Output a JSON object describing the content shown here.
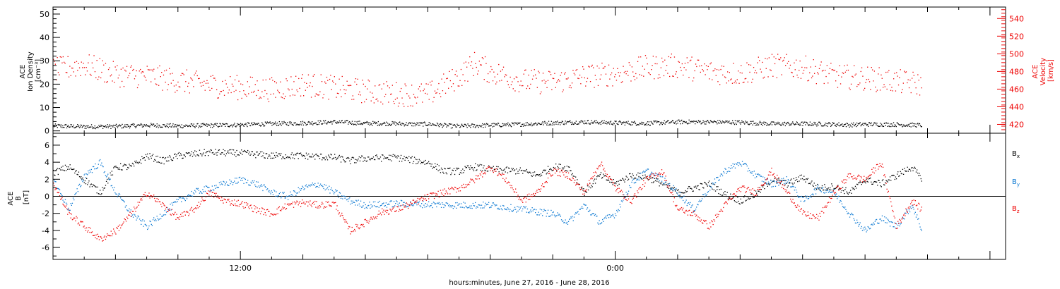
{
  "chart_data": [
    {
      "type": "scatter",
      "panel": "plasma",
      "ylabel_lines": [
        "ACE",
        "Ion Density",
        "[cm⁻³]"
      ],
      "ylabel_right_lines": [
        "ACE",
        "Velocity",
        "[km/s]"
      ],
      "ylim": [
        -1,
        53
      ],
      "yticks": [
        0,
        10,
        20,
        30,
        40,
        50
      ],
      "ylim_right": [
        410,
        553
      ],
      "yticks_right": [
        420,
        440,
        460,
        480,
        500,
        520,
        540
      ],
      "grid": false,
      "series": [
        {
          "key": "density",
          "axis": "left",
          "color": "#000000",
          "knots": [
            [
              0,
              2.3
            ],
            [
              1,
              2.0
            ],
            [
              2,
              2.1
            ],
            [
              3,
              2.6
            ],
            [
              4,
              2.3
            ],
            [
              5,
              2.5
            ],
            [
              6,
              2.8
            ],
            [
              7,
              3.2
            ],
            [
              8,
              3.5
            ],
            [
              9,
              4.0
            ],
            [
              10,
              3.4
            ],
            [
              11,
              3.3
            ],
            [
              11.5,
              3.0
            ],
            [
              12,
              3.1
            ],
            [
              12.8,
              2.2
            ],
            [
              13,
              2.2
            ],
            [
              14,
              2.6
            ],
            [
              15,
              3.0
            ],
            [
              16,
              3.6
            ],
            [
              17,
              4.0
            ],
            [
              18,
              3.6
            ],
            [
              19,
              3.4
            ],
            [
              20,
              4.0
            ],
            [
              21,
              4.0
            ],
            [
              22,
              3.8
            ],
            [
              23,
              3.2
            ],
            [
              24,
              3.2
            ],
            [
              25,
              3.0
            ],
            [
              25.5,
              2.7
            ],
            [
              26,
              3.0
            ],
            [
              27,
              2.9
            ],
            [
              27.8,
              2.6
            ],
            [
              28,
              2.4
            ]
          ]
        },
        {
          "key": "velocity",
          "axis": "right",
          "color": "#ee0000",
          "knots": [
            [
              0,
              482
            ],
            [
              1,
              488
            ],
            [
              2,
              477
            ],
            [
              3,
              475
            ],
            [
              4,
              470
            ],
            [
              5,
              465
            ],
            [
              6,
              462
            ],
            [
              7,
              460
            ],
            [
              8,
              466
            ],
            [
              9,
              462
            ],
            [
              10,
              458
            ],
            [
              11,
              455
            ],
            [
              12,
              454
            ],
            [
              13,
              475
            ],
            [
              13.5,
              490
            ],
            [
              14,
              480
            ],
            [
              15,
              470
            ],
            [
              16,
              468
            ],
            [
              17,
              475
            ],
            [
              18,
              478
            ],
            [
              19,
              485
            ],
            [
              20,
              487
            ],
            [
              21,
              480
            ],
            [
              22,
              478
            ],
            [
              23,
              487
            ],
            [
              24,
              485
            ],
            [
              25,
              475
            ],
            [
              26,
              473
            ],
            [
              27,
              469
            ],
            [
              27.8,
              466
            ]
          ]
        }
      ]
    },
    {
      "type": "scatter",
      "panel": "magnetic-field",
      "ylabel_lines": [
        "ACE",
        "B",
        "[nT]"
      ],
      "ylim": [
        -7.4,
        7.4
      ],
      "yticks": [
        -6,
        -4,
        -2,
        0,
        2,
        4,
        6
      ],
      "zero_line": true,
      "grid": false,
      "legend": [
        {
          "label": "Bx",
          "base": "B",
          "sub": "x",
          "color": "#000000"
        },
        {
          "label": "By",
          "base": "B",
          "sub": "y",
          "color": "#0a78d2"
        },
        {
          "label": "Bz",
          "base": "B",
          "sub": "z",
          "color": "#ee0000"
        }
      ],
      "series": [
        {
          "key": "bx",
          "color": "#000000",
          "knots": [
            [
              0,
              2.8
            ],
            [
              0.5,
              3.5
            ],
            [
              1,
              2.0
            ],
            [
              1.5,
              0.5
            ],
            [
              2,
              3.5
            ],
            [
              2.5,
              3.5
            ],
            [
              3,
              4.8
            ],
            [
              3.5,
              4.2
            ],
            [
              4,
              4.8
            ],
            [
              5,
              5.2
            ],
            [
              6,
              5.1
            ],
            [
              7,
              4.8
            ],
            [
              8,
              4.8
            ],
            [
              9,
              4.6
            ],
            [
              9.5,
              4.2
            ],
            [
              10,
              4.5
            ],
            [
              11,
              4.6
            ],
            [
              12,
              4.0
            ],
            [
              12.5,
              3.0
            ],
            [
              13,
              3.0
            ],
            [
              13.5,
              3.5
            ],
            [
              14,
              3.2
            ],
            [
              15,
              3.0
            ],
            [
              15.5,
              2.5
            ],
            [
              16,
              3.5
            ],
            [
              16.5,
              3.4
            ],
            [
              17,
              0.5
            ],
            [
              17.5,
              2.5
            ],
            [
              18,
              1.5
            ],
            [
              18.5,
              2.5
            ],
            [
              19,
              2.3
            ],
            [
              19.5,
              1.5
            ],
            [
              20,
              0.5
            ],
            [
              21,
              1.5
            ],
            [
              21.5,
              0.3
            ],
            [
              22,
              -0.5
            ],
            [
              22.5,
              0.3
            ],
            [
              23,
              2.0
            ],
            [
              23.5,
              1.5
            ],
            [
              24,
              2.3
            ],
            [
              24.5,
              1.0
            ],
            [
              25,
              1.2
            ],
            [
              25.5,
              0.5
            ],
            [
              26,
              2.0
            ],
            [
              26.5,
              1.5
            ],
            [
              27,
              2.5
            ],
            [
              27.5,
              3.5
            ],
            [
              27.8,
              2.0
            ]
          ]
        },
        {
          "key": "by",
          "color": "#0a78d2",
          "knots": [
            [
              0,
              2.0
            ],
            [
              0.5,
              -1.5
            ],
            [
              1,
              2.5
            ],
            [
              1.5,
              4.0
            ],
            [
              2,
              0.5
            ],
            [
              2.5,
              -2.0
            ],
            [
              3,
              -3.5
            ],
            [
              3.5,
              -2.0
            ],
            [
              4,
              -0.5
            ],
            [
              4.5,
              0.5
            ],
            [
              5,
              1.0
            ],
            [
              5.5,
              1.5
            ],
            [
              6,
              2.0
            ],
            [
              6.5,
              1.5
            ],
            [
              7,
              0.5
            ],
            [
              7.5,
              0
            ],
            [
              8,
              1.0
            ],
            [
              8.5,
              1.5
            ],
            [
              9,
              0.5
            ],
            [
              9.5,
              -0.5
            ],
            [
              10,
              -1.0
            ],
            [
              11,
              -0.8
            ],
            [
              12,
              -0.9
            ],
            [
              13,
              -1.0
            ],
            [
              14,
              -1.0
            ],
            [
              15,
              -1.5
            ],
            [
              16,
              -2.0
            ],
            [
              16.5,
              -3.0
            ],
            [
              17,
              -1.0
            ],
            [
              17.5,
              -3.0
            ],
            [
              18,
              -2.0
            ],
            [
              18.5,
              1.5
            ],
            [
              19,
              3.0
            ],
            [
              19.5,
              2.0
            ],
            [
              20,
              0.5
            ],
            [
              20.5,
              -1.5
            ],
            [
              21,
              1.0
            ],
            [
              21.5,
              3.0
            ],
            [
              22,
              4.0
            ],
            [
              22.5,
              2.5
            ],
            [
              23,
              1.5
            ],
            [
              23.5,
              2.0
            ],
            [
              24,
              -0.5
            ],
            [
              24.5,
              1.0
            ],
            [
              25,
              0.5
            ],
            [
              25.5,
              -2.0
            ],
            [
              26,
              -4.0
            ],
            [
              26.5,
              -2.5
            ],
            [
              27,
              -3.5
            ],
            [
              27.5,
              -1.0
            ],
            [
              27.8,
              -3.8
            ]
          ]
        },
        {
          "key": "bz",
          "color": "#ee0000",
          "knots": [
            [
              0,
              1.5
            ],
            [
              0.5,
              -2.0
            ],
            [
              1,
              -3.5
            ],
            [
              1.5,
              -5.0
            ],
            [
              2,
              -4.0
            ],
            [
              2.5,
              -2.0
            ],
            [
              3,
              0.5
            ],
            [
              3.5,
              -1.0
            ],
            [
              4,
              -2.5
            ],
            [
              4.5,
              -1.5
            ],
            [
              5,
              0.5
            ],
            [
              5.5,
              -0.5
            ],
            [
              6,
              -0.8
            ],
            [
              6.5,
              -1.5
            ],
            [
              7,
              -2.0
            ],
            [
              7.5,
              -1.0
            ],
            [
              8,
              -0.7
            ],
            [
              8.5,
              -1.0
            ],
            [
              9,
              -0.8
            ],
            [
              9.5,
              -4.0
            ],
            [
              10,
              -3.0
            ],
            [
              10.5,
              -1.8
            ],
            [
              11,
              -1.5
            ],
            [
              11.5,
              -0.8
            ],
            [
              12,
              0
            ],
            [
              12.5,
              0.5
            ],
            [
              13,
              1.0
            ],
            [
              13.5,
              2.0
            ],
            [
              14,
              3.5
            ],
            [
              14.5,
              2.0
            ],
            [
              15,
              -0.5
            ],
            [
              15.5,
              0.5
            ],
            [
              16,
              3.0
            ],
            [
              16.5,
              2.5
            ],
            [
              17,
              0.5
            ],
            [
              17.5,
              4.0
            ],
            [
              18,
              1.0
            ],
            [
              18.5,
              -0.5
            ],
            [
              19,
              2.0
            ],
            [
              19.5,
              3.0
            ],
            [
              20,
              -1.5
            ],
            [
              20.5,
              -2.0
            ],
            [
              21,
              -3.5
            ],
            [
              21.5,
              -1.0
            ],
            [
              22,
              1.0
            ],
            [
              22.5,
              0.5
            ],
            [
              23,
              3.0
            ],
            [
              23.5,
              0.5
            ],
            [
              24,
              -2.0
            ],
            [
              24.5,
              -2.5
            ],
            [
              25,
              0.5
            ],
            [
              25.5,
              2.5
            ],
            [
              26,
              2.0
            ],
            [
              26.5,
              4.0
            ],
            [
              27,
              -3.5
            ],
            [
              27.5,
              -0.5
            ],
            [
              27.8,
              -1.5
            ]
          ]
        }
      ]
    }
  ],
  "x_axis": {
    "xlim_hours": [
      6,
      36.5
    ],
    "data_end_hours": 33.8,
    "xticks": [
      {
        "hours": 12,
        "label": "12:00"
      },
      {
        "hours": 24,
        "label": "0:00"
      }
    ],
    "xlabel": "hours:minutes, June 27, 2016 - June 28, 2016"
  }
}
